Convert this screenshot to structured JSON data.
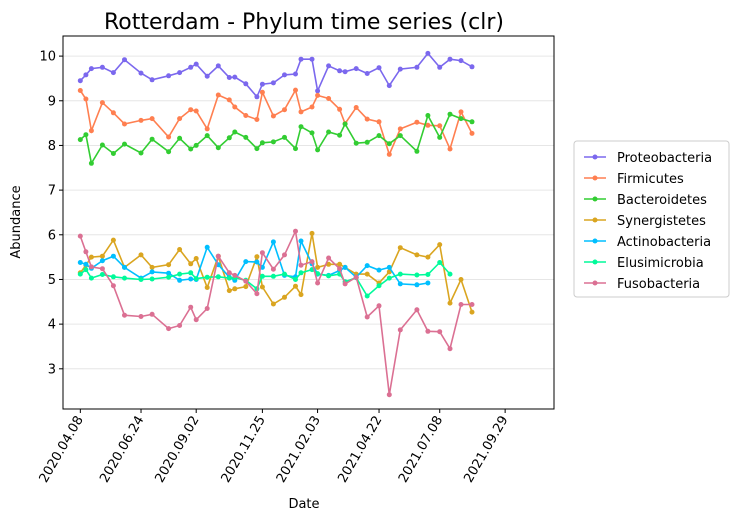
{
  "chart_data": {
    "type": "line",
    "title": "Rotterdam - Phylum time series (clr)",
    "xlabel": "Date",
    "ylabel": "Abundance",
    "ylim": [
      2.1,
      10.45
    ],
    "yticks": [
      3,
      4,
      5,
      6,
      7,
      8,
      9,
      10
    ],
    "xlim": [
      "2020-03-17",
      "2021-11-30"
    ],
    "xticks": [
      {
        "label": "2020.04.08",
        "date": "2020-04-08"
      },
      {
        "label": "2020.06.24",
        "date": "2020-06-24"
      },
      {
        "label": "2020.09.02",
        "date": "2020-09-02"
      },
      {
        "label": "2020.11.25",
        "date": "2020-11-25"
      },
      {
        "label": "2021.02.03",
        "date": "2021-02-03"
      },
      {
        "label": "2021.04.22",
        "date": "2021-04-22"
      },
      {
        "label": "2021.07.08",
        "date": "2021-07-08"
      },
      {
        "label": "2021.09.29",
        "date": "2021-09-29"
      }
    ],
    "grid": "horizontal",
    "legend_position": "outside-right",
    "dates": [
      "2020-04-08",
      "2020-04-15",
      "2020-04-22",
      "2020-05-06",
      "2020-05-20",
      "2020-06-03",
      "2020-06-24",
      "2020-07-08",
      "2020-07-29",
      "2020-08-12",
      "2020-08-26",
      "2020-09-02",
      "2020-09-16",
      "2020-09-30",
      "2020-10-14",
      "2020-10-21",
      "2020-11-04",
      "2020-11-18",
      "2020-11-25",
      "2020-12-09",
      "2020-12-23",
      "2021-01-06",
      "2021-01-13",
      "2021-01-27",
      "2021-02-03",
      "2021-02-17",
      "2021-03-03",
      "2021-03-10",
      "2021-03-24",
      "2021-04-07",
      "2021-04-22",
      "2021-05-05",
      "2021-05-19",
      "2021-06-09",
      "2021-06-23",
      "2021-07-08",
      "2021-07-21",
      "2021-08-04",
      "2021-08-18",
      "2021-09-08",
      "2021-09-22",
      "2021-09-29",
      "2021-10-06",
      "2021-10-13",
      "2021-10-20",
      "2021-10-27",
      "2021-11-03"
    ],
    "series": [
      {
        "name": "Proteobacteria",
        "color": "#7b68ee",
        "values": [
          9.45,
          9.58,
          9.72,
          9.75,
          9.63,
          9.92,
          9.62,
          9.47,
          9.56,
          9.63,
          9.75,
          9.82,
          9.55,
          9.78,
          9.52,
          9.53,
          9.38,
          9.09,
          9.37,
          9.4,
          9.58,
          9.6,
          9.93,
          9.93,
          9.22,
          9.78,
          9.67,
          9.65,
          9.72,
          9.61,
          9.74,
          9.34,
          9.71,
          9.75,
          10.06,
          9.75,
          9.93,
          9.9,
          9.76,
          null,
          null,
          null,
          null,
          null,
          null,
          null,
          null
        ]
      },
      {
        "name": "Firmicutes",
        "color": "#ff7f50",
        "values": [
          9.23,
          9.04,
          8.33,
          8.96,
          8.73,
          8.48,
          8.56,
          8.6,
          8.19,
          8.6,
          8.8,
          8.77,
          8.37,
          9.13,
          9.02,
          8.86,
          8.67,
          8.58,
          9.19,
          8.66,
          8.8,
          9.24,
          8.75,
          8.86,
          9.12,
          9.05,
          8.81,
          8.49,
          8.85,
          8.59,
          8.53,
          7.8,
          8.37,
          8.52,
          8.45,
          8.44,
          7.92,
          8.75,
          8.27,
          null,
          null,
          null,
          null,
          null,
          null,
          null,
          null
        ]
      },
      {
        "name": "Bacteroidetes",
        "color": "#32cd32",
        "values": [
          8.13,
          8.24,
          7.6,
          8.01,
          7.82,
          8.03,
          7.83,
          8.14,
          7.86,
          8.16,
          7.92,
          8.0,
          8.22,
          7.95,
          8.17,
          8.3,
          8.18,
          7.93,
          8.06,
          8.08,
          8.18,
          7.93,
          8.42,
          8.28,
          7.9,
          8.3,
          8.23,
          8.48,
          8.05,
          8.07,
          8.22,
          8.04,
          8.22,
          7.87,
          8.67,
          8.18,
          8.7,
          8.6,
          8.53,
          null,
          null,
          null,
          null,
          null,
          null,
          null,
          null
        ]
      },
      {
        "name": "Synergistetes",
        "color": "#daa520",
        "values": [
          5.15,
          5.32,
          5.5,
          5.52,
          5.88,
          5.27,
          5.55,
          5.27,
          5.33,
          5.67,
          5.35,
          5.47,
          4.82,
          5.52,
          4.75,
          4.79,
          4.84,
          5.51,
          4.83,
          4.45,
          4.6,
          4.85,
          4.66,
          6.03,
          5.27,
          5.34,
          5.34,
          5.27,
          5.12,
          5.12,
          4.92,
          5.17,
          5.71,
          5.55,
          5.5,
          5.78,
          4.47,
          5.0,
          4.27,
          null,
          null,
          null,
          null,
          null,
          null,
          null,
          null
        ]
      },
      {
        "name": "Actinobacteria",
        "color": "#00bfff",
        "values": [
          5.38,
          5.34,
          5.25,
          5.42,
          5.52,
          5.27,
          5.03,
          5.17,
          5.14,
          4.98,
          5.01,
          5.0,
          5.72,
          5.33,
          5.05,
          4.98,
          5.4,
          5.39,
          5.27,
          5.84,
          5.09,
          5.06,
          5.86,
          5.35,
          5.12,
          5.09,
          5.2,
          5.27,
          5.05,
          5.31,
          5.21,
          5.27,
          4.9,
          4.88,
          4.92,
          null,
          null,
          null,
          null,
          null,
          null,
          null,
          null,
          null,
          null,
          null,
          null
        ]
      },
      {
        "name": "Elusimicrobia",
        "color": "#00fa9a",
        "values": [
          5.12,
          5.22,
          5.03,
          5.11,
          5.06,
          5.03,
          5.0,
          5.01,
          5.05,
          5.12,
          5.15,
          5.02,
          5.05,
          5.06,
          5.03,
          5.04,
          4.98,
          4.79,
          5.07,
          5.07,
          5.12,
          5.0,
          5.15,
          5.22,
          5.13,
          5.08,
          5.12,
          4.95,
          5.04,
          4.63,
          4.86,
          5.03,
          5.12,
          5.1,
          5.11,
          5.38,
          5.12,
          null,
          null,
          null,
          null,
          null,
          null,
          null,
          null,
          null,
          null
        ]
      },
      {
        "name": "Fusobacteria",
        "color": "#db7093",
        "values": [
          5.97,
          5.62,
          5.28,
          5.24,
          4.86,
          4.2,
          4.17,
          4.22,
          3.9,
          3.97,
          4.38,
          4.1,
          4.35,
          5.52,
          5.15,
          5.09,
          4.96,
          4.68,
          5.6,
          5.23,
          5.55,
          6.08,
          5.32,
          5.4,
          4.92,
          5.48,
          5.24,
          4.9,
          5.05,
          4.16,
          4.41,
          2.42,
          3.87,
          4.32,
          3.84,
          3.83,
          3.45,
          4.44,
          4.44,
          null,
          null,
          null,
          null,
          null,
          null,
          null,
          null
        ]
      }
    ]
  }
}
